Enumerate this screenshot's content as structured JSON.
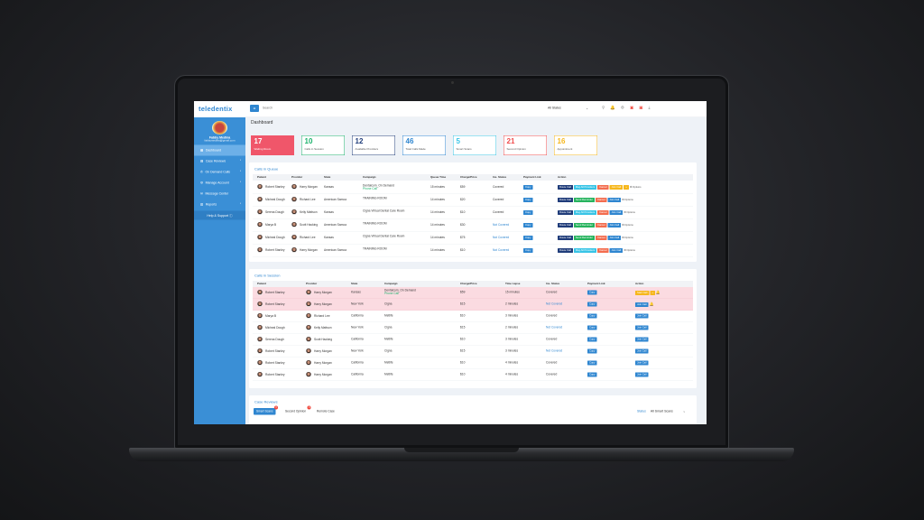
{
  "app": {
    "logo": "teledentix",
    "search_placeholder": "Search",
    "state_filter": "All States",
    "page_title": "Dashboard"
  },
  "user": {
    "name": "Fabby Medina",
    "email": "fabbymedina@gmail.com"
  },
  "sidebar": {
    "items": [
      {
        "label": "Dashboard",
        "icon": "dashboard-icon",
        "active": true
      },
      {
        "label": "Case Reviews",
        "icon": "case-icon"
      },
      {
        "label": "On Demand Calls",
        "icon": "phone-icon"
      },
      {
        "label": "Manage Account",
        "icon": "gear-icon"
      },
      {
        "label": "Message Center",
        "icon": "message-icon"
      },
      {
        "label": "Reports",
        "icon": "report-icon"
      }
    ],
    "help": "Help & Support"
  },
  "stats": [
    {
      "value": "17",
      "label": "Waiting Room",
      "color": "#f0566a",
      "filled": true
    },
    {
      "value": "10",
      "label": "Calls in Session",
      "color": "#1ab26b"
    },
    {
      "value": "12",
      "label": "Available Providers",
      "color": "#1f3c7a"
    },
    {
      "value": "46",
      "label": "Total Calls Made",
      "color": "#2f86d0"
    },
    {
      "value": "5",
      "label": "Smart Scans",
      "color": "#38c4e6"
    },
    {
      "value": "21",
      "label": "Second Opinion",
      "color": "#f04c4c"
    },
    {
      "value": "16",
      "label": "Appointment",
      "color": "#f6b71c"
    }
  ],
  "queue": {
    "title": "Calls in Queue",
    "columns": [
      "Patient",
      "Provider",
      "State",
      "Campaign",
      "Queue Time",
      "Charge/Price",
      "Ins. Status",
      "Payment Link",
      "Action"
    ],
    "rows": [
      {
        "patient": "Robert Stanley",
        "provider": "Harry Morgan",
        "state": "Kansas",
        "campaign": "Dentalcom_On Demand",
        "sub": "Phone Call",
        "time": "15 minutes",
        "price": "$59",
        "ins": "Covered",
        "pay": "Copy",
        "actions": [
          "Route Call",
          "Msg All Providers",
          "Cancel",
          "Join Call"
        ],
        "options": "Options"
      },
      {
        "patient": "Micheal Dough",
        "provider": "Richard Lee",
        "state": "American Samoa",
        "campaign": "TRAINING ROOM",
        "time": "14 minutes",
        "price": "$20",
        "ins": "Covered",
        "pay": "Copy",
        "actions": [
          "Route Call",
          "Send Reminder",
          "Cancel",
          "Join Call"
        ],
        "options": "Options"
      },
      {
        "patient": "Serena Dough",
        "provider": "Kelly Mattson",
        "state": "Kansas",
        "campaign": "Cigna Virtual Dental Care Room",
        "time": "14 minutes",
        "price": "$10",
        "ins": "Covered",
        "pay": "Copy",
        "actions": [
          "Route Call",
          "Msg All Providers",
          "Cancel",
          "Join Call"
        ],
        "options": "Options"
      },
      {
        "patient": "Marya B",
        "provider": "Scott Hacking",
        "state": "American Samoa",
        "campaign": "TRAINING ROOM",
        "time": "14 minutes",
        "price": "$30",
        "ins": "Not Covered",
        "pay": "Copy",
        "actions": [
          "Route Call",
          "Send Reminder",
          "Cancel",
          "Join Call"
        ],
        "options": "Options"
      },
      {
        "patient": "Micheal Dough",
        "provider": "Richard Lee",
        "state": "Kansas",
        "campaign": "Cigna Virtual Dental Care Room",
        "time": "14 minutes",
        "price": "$75",
        "ins": "Not Covered",
        "pay": "Copy",
        "actions": [
          "Route Call",
          "Send Reminder",
          "Cancel",
          "Join Call"
        ],
        "options": "Options"
      },
      {
        "patient": "Robert Stanley",
        "provider": "Harry Morgan",
        "state": "American Samoa",
        "campaign": "TRAINING ROOM",
        "time": "14 minutes",
        "price": "$10",
        "ins": "Not Covered",
        "pay": "Copy",
        "actions": [
          "Route Call",
          "Msg All Providers",
          "Cancel",
          "Join Call"
        ],
        "options": "Options"
      }
    ]
  },
  "session": {
    "title": "Calls in Session",
    "columns": [
      "Patient",
      "Provider",
      "State",
      "Campaign",
      "Charge/Price",
      "Time Lapse",
      "Ins. Status",
      "Payment Link",
      "Action"
    ],
    "rows": [
      {
        "patient": "Robert Stanley",
        "provider": "Harry Morgan",
        "state": "Kansas",
        "campaign": "Dentalcom_On Demand",
        "sub": "Phone Call",
        "price": "$59",
        "time": "15 minutes",
        "ins": "Covered",
        "pay": "Copy",
        "action": "Start Call",
        "highlight": true
      },
      {
        "patient": "Robert Stanley",
        "provider": "Harry Morgan",
        "state": "New York",
        "campaign": "Cigna",
        "price": "$15",
        "time": "2 minutes",
        "ins": "Not Covered",
        "pay": "Copy",
        "action": "Join Call",
        "highlight": true
      },
      {
        "patient": "Marya B",
        "provider": "Richard Lee",
        "state": "California",
        "campaign": "Metlife",
        "price": "$10",
        "time": "3 minutes",
        "ins": "Covered",
        "pay": "Copy",
        "action": "Join Call"
      },
      {
        "patient": "Micheal Dough",
        "provider": "Kelly Mattson",
        "state": "New York",
        "campaign": "Cigna",
        "price": "$15",
        "time": "2 minutes",
        "ins": "Not Covered",
        "pay": "Copy",
        "action": "Join Call"
      },
      {
        "patient": "Serena Dough",
        "provider": "Scott Hacking",
        "state": "California",
        "campaign": "Metlife",
        "price": "$10",
        "time": "3 minutes",
        "ins": "Covered",
        "pay": "Copy",
        "action": "Join Call"
      },
      {
        "patient": "Robert Stanley",
        "provider": "Harry Morgan",
        "state": "New York",
        "campaign": "Cigna",
        "price": "$15",
        "time": "3 minutes",
        "ins": "Not Covered",
        "pay": "Copy",
        "action": "Join Call"
      },
      {
        "patient": "Robert Stanley",
        "provider": "Harry Morgan",
        "state": "California",
        "campaign": "Metlife",
        "price": "$10",
        "time": "4 minutes",
        "ins": "Covered",
        "pay": "Copy",
        "action": "Join Call"
      },
      {
        "patient": "Robert Stanley",
        "provider": "Harry Morgan",
        "state": "California",
        "campaign": "Metlife",
        "price": "$10",
        "time": "4 minutes",
        "ins": "Covered",
        "pay": "Copy",
        "action": "Join Call"
      }
    ]
  },
  "case_reviews": {
    "title": "Case Reviews",
    "tabs": [
      {
        "label": "Smart Scans",
        "badge": "0"
      },
      {
        "label": "Second Opinion",
        "badge": "0"
      },
      {
        "label": "Remote Case"
      }
    ],
    "status_label": "Status",
    "status_value": "All Smart Scans"
  }
}
